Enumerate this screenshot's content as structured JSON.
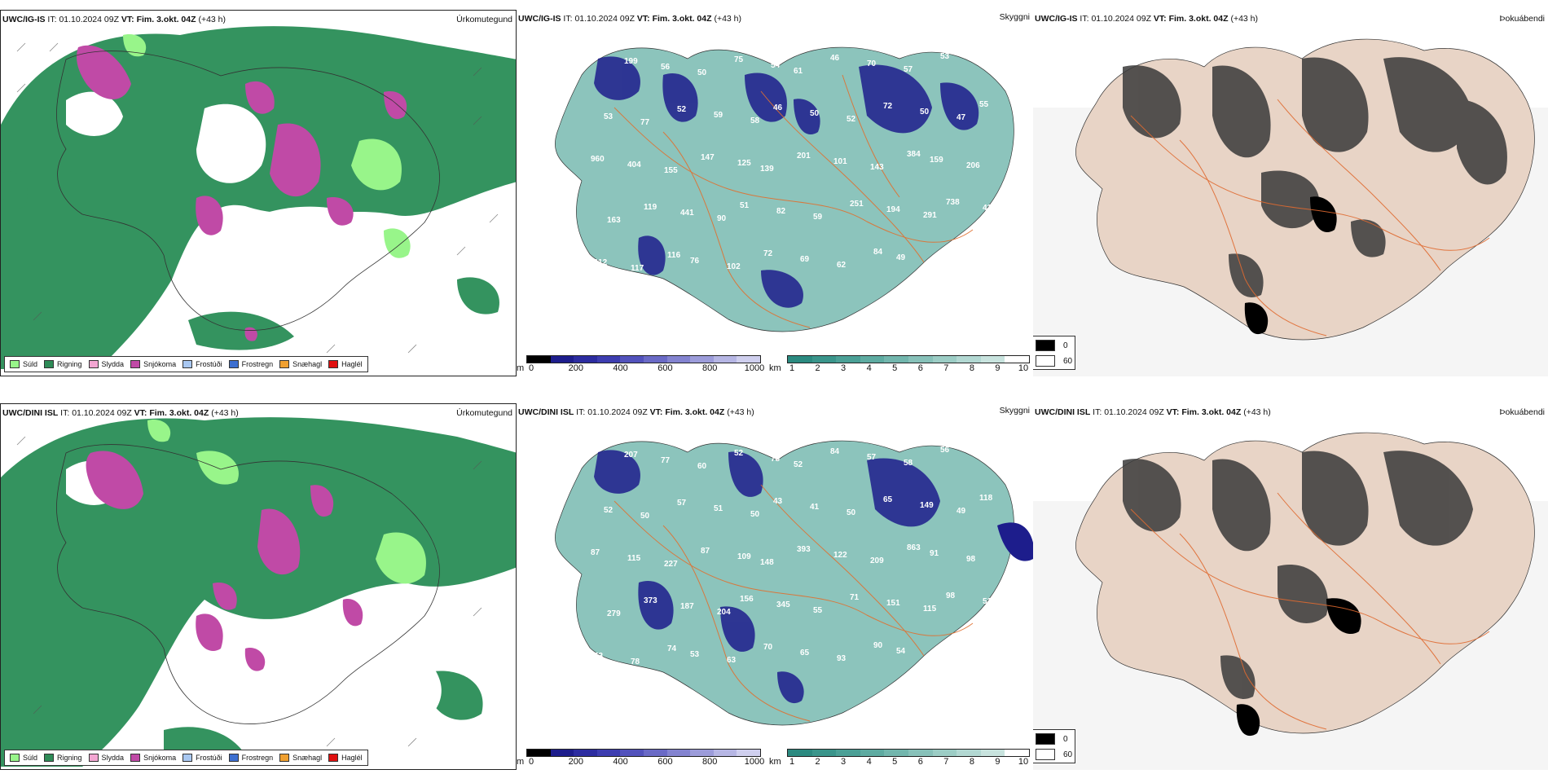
{
  "rows": [
    {
      "model": "UWC/IG-IS",
      "precip": {
        "model": "UWC/IG-IS",
        "it_label": "IT:",
        "it_value": "01.10.2024 09Z",
        "vt_label": "VT:",
        "vt_value": "Fim. 3.okt. 04Z",
        "lead": "(+43 h)",
        "panel_label": "Úrkomutegund"
      },
      "visibility": {
        "model": "UWC/IG-IS",
        "it_label": "IT:",
        "it_value": "01.10.2024 09Z",
        "vt_label": "VT:",
        "vt_value": "Fim. 3.okt. 04Z",
        "lead": "(+43 h)",
        "panel_label": "Skyggni",
        "labels": [
          "162",
          "199",
          "56",
          "50",
          "75",
          "54",
          "61",
          "46",
          "70",
          "57",
          "53",
          "53",
          "53",
          "77",
          "52",
          "59",
          "58",
          "46",
          "50",
          "52",
          "72",
          "50",
          "47",
          "55",
          "960",
          "404",
          "155",
          "147",
          "125",
          "139",
          "201",
          "101",
          "143",
          "384",
          "159",
          "206",
          "163",
          "119",
          "441",
          "90",
          "51",
          "82",
          "59",
          "251",
          "194",
          "291",
          "738",
          "416",
          "112",
          "117",
          "116",
          "76",
          "102",
          "72",
          "69",
          "62",
          "84",
          "49"
        ]
      },
      "fog": {
        "model": "UWC/IG-IS",
        "it_label": "IT:",
        "it_value": "01.10.2024 09Z",
        "vt_label": "VT:",
        "vt_value": "Fim. 3.okt. 04Z",
        "lead": "(+43 h)",
        "panel_label": "Þokuábendi"
      }
    },
    {
      "model": "UWC/DINI ISL",
      "precip": {
        "model": "UWC/DINI ISL",
        "it_label": "IT:",
        "it_value": "01.10.2024 09Z",
        "vt_label": "VT:",
        "vt_value": "Fim. 3.okt. 04Z",
        "lead": "(+43 h)",
        "panel_label": "Úrkomutegund"
      },
      "visibility": {
        "model": "UWC/DINI ISL",
        "it_label": "IT:",
        "it_value": "01.10.2024 09Z",
        "vt_label": "VT:",
        "vt_value": "Fim. 3.okt. 04Z",
        "lead": "(+43 h)",
        "panel_label": "Skyggni",
        "labels": [
          "123",
          "207",
          "77",
          "60",
          "52",
          "73",
          "52",
          "84",
          "57",
          "58",
          "56",
          "45",
          "52",
          "50",
          "57",
          "51",
          "50",
          "43",
          "41",
          "50",
          "65",
          "149",
          "49",
          "118",
          "87",
          "115",
          "227",
          "87",
          "109",
          "148",
          "393",
          "122",
          "209",
          "863",
          "91",
          "98",
          "279",
          "373",
          "187",
          "204",
          "156",
          "345",
          "55",
          "71",
          "151",
          "115",
          "98",
          "51",
          "53",
          "78",
          "74",
          "53",
          "63",
          "70",
          "65",
          "93",
          "90",
          "54"
        ]
      },
      "fog": {
        "model": "UWC/DINI ISL",
        "it_label": "IT:",
        "it_value": "01.10.2024 09Z",
        "vt_label": "VT:",
        "vt_value": "Fim. 3.okt. 04Z",
        "lead": "(+43 h)",
        "panel_label": "Þokuábendi"
      }
    }
  ],
  "ptype_legend": [
    {
      "label": "Súld",
      "color": "#98f58a"
    },
    {
      "label": "Rigning",
      "color": "#2e8b57"
    },
    {
      "label": "Slydda",
      "color": "#f3a6d2"
    },
    {
      "label": "Snjókoma",
      "color": "#c04aa6"
    },
    {
      "label": "Frostúði",
      "color": "#a9c8f2"
    },
    {
      "label": "Frostregn",
      "color": "#3d6fd0"
    },
    {
      "label": "Snæhagl",
      "color": "#f0a030"
    },
    {
      "label": "Haglél",
      "color": "#e01010"
    }
  ],
  "elevation_bar": {
    "unit": "m",
    "ticks": [
      "0",
      "200",
      "400",
      "600",
      "800",
      "1000"
    ],
    "colors": [
      "#000000",
      "#1d1d8c",
      "#2c2ca0",
      "#3d3db0",
      "#5252bc",
      "#6a6ac6",
      "#8383d0",
      "#9c9cda",
      "#b6b6e4",
      "#cfcfee"
    ]
  },
  "visibility_bar": {
    "unit": "km",
    "ticks": [
      "1",
      "2",
      "3",
      "4",
      "5",
      "6",
      "7",
      "8",
      "9",
      "10"
    ],
    "colors": [
      "#2b8a80",
      "#3a958b",
      "#4ba096",
      "#5eaba1",
      "#72b6ad",
      "#87c1b9",
      "#9ccdc5",
      "#b2d8d2",
      "#c8e3de",
      "#ffffff"
    ]
  },
  "fog_legend": {
    "items": [
      {
        "label": "0",
        "color": "#000000"
      },
      {
        "label": "60",
        "color": "#ffffff"
      }
    ]
  }
}
